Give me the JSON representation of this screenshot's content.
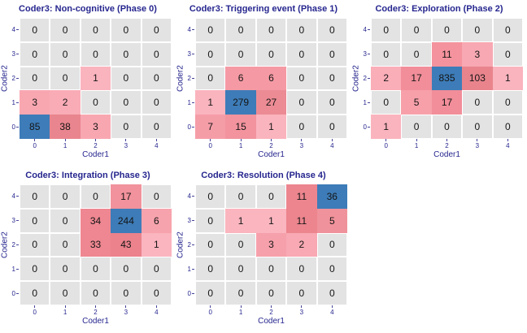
{
  "page": {
    "background": "#ffffff"
  },
  "style": {
    "navy": "#26268f",
    "tick_mark_color": "#44449a",
    "zero_fill": "#e3e3e3",
    "grid_line": "#ffffff",
    "max_blue": "#3d7cb8",
    "cell_text": "#151515"
  },
  "chart_data": [
    {
      "type": "heatmap",
      "title": "Coder3: Non-cognitive (Phase 0)",
      "xlabel": "Coder1",
      "ylabel": "Coder2",
      "x_ticks": [
        "0",
        "1",
        "2",
        "3",
        "4"
      ],
      "y_ticks": [
        "4",
        "3",
        "2",
        "1",
        "0"
      ],
      "rows": [
        [
          0,
          0,
          0,
          0,
          0
        ],
        [
          0,
          0,
          0,
          0,
          0
        ],
        [
          0,
          0,
          1,
          0,
          0
        ],
        [
          3,
          2,
          0,
          0,
          0
        ],
        [
          85,
          38,
          3,
          0,
          0
        ]
      ],
      "cell_colors": [
        [
          null,
          null,
          null,
          null,
          null
        ],
        [
          null,
          null,
          null,
          null,
          null
        ],
        [
          null,
          null,
          "#fab4be",
          null,
          null
        ],
        [
          "#f8a7b1",
          "#f9acb6",
          null,
          null,
          null
        ],
        [
          "#3d7cb8",
          "#e9858e",
          "#f8a7b1",
          null,
          null
        ]
      ]
    },
    {
      "type": "heatmap",
      "title": "Coder3: Triggering event (Phase 1)",
      "xlabel": "Coder1",
      "ylabel": "Coder2",
      "x_ticks": [
        "0",
        "1",
        "2",
        "3",
        "4"
      ],
      "y_ticks": [
        "4",
        "3",
        "2",
        "1",
        "0"
      ],
      "rows": [
        [
          0,
          0,
          0,
          0,
          0
        ],
        [
          0,
          0,
          0,
          0,
          0
        ],
        [
          0,
          6,
          6,
          0,
          0
        ],
        [
          1,
          279,
          27,
          0,
          0
        ],
        [
          7,
          15,
          1,
          0,
          0
        ]
      ],
      "cell_colors": [
        [
          null,
          null,
          null,
          null,
          null
        ],
        [
          null,
          null,
          null,
          null,
          null
        ],
        [
          null,
          "#f59aa4",
          "#f59aa4",
          null,
          null
        ],
        [
          "#fab4be",
          "#3d7cb8",
          "#ec8b94",
          null,
          null
        ],
        [
          "#f59da7",
          "#f2939e",
          "#fab4be",
          null,
          null
        ]
      ]
    },
    {
      "type": "heatmap",
      "title": "Coder3: Exploration (Phase 2)",
      "xlabel": "Coder1",
      "ylabel": "Coder2",
      "x_ticks": [
        "0",
        "1",
        "2",
        "3",
        "4"
      ],
      "y_ticks": [
        "4",
        "3",
        "2",
        "1",
        "0"
      ],
      "rows": [
        [
          0,
          0,
          0,
          0,
          0
        ],
        [
          0,
          0,
          11,
          3,
          0
        ],
        [
          2,
          17,
          835,
          103,
          1
        ],
        [
          0,
          5,
          17,
          0,
          0
        ],
        [
          1,
          0,
          0,
          0,
          0
        ]
      ],
      "cell_colors": [
        [
          null,
          null,
          null,
          null,
          null
        ],
        [
          null,
          null,
          "#f4939d",
          "#f8a8b2",
          null
        ],
        [
          "#faaeb8",
          "#f18e99",
          "#3d7cb8",
          "#e9848d",
          "#fab4be"
        ],
        [
          null,
          "#f7a0aa",
          "#f18e99",
          null,
          null
        ],
        [
          "#fab4be",
          null,
          null,
          null,
          null
        ]
      ]
    },
    {
      "type": "heatmap",
      "title": "Coder3: Integration (Phase 3)",
      "xlabel": "Coder1",
      "ylabel": "Coder2",
      "x_ticks": [
        "0",
        "1",
        "2",
        "3",
        "4"
      ],
      "y_ticks": [
        "4",
        "3",
        "2",
        "1",
        "0"
      ],
      "rows": [
        [
          0,
          0,
          0,
          17,
          0
        ],
        [
          0,
          0,
          34,
          244,
          6
        ],
        [
          0,
          0,
          33,
          43,
          1
        ],
        [
          0,
          0,
          0,
          0,
          0
        ],
        [
          0,
          0,
          0,
          0,
          0
        ]
      ],
      "cell_colors": [
        [
          null,
          null,
          null,
          "#f1929c",
          null
        ],
        [
          null,
          null,
          "#ee8791",
          "#3d7cb8",
          "#f7a3ad"
        ],
        [
          null,
          null,
          "#ee8791",
          "#ec828c",
          "#fab5bf"
        ],
        [
          null,
          null,
          null,
          null,
          null
        ],
        [
          null,
          null,
          null,
          null,
          null
        ]
      ]
    },
    {
      "type": "heatmap",
      "title": "Coder3: Resolution (Phase 4)",
      "xlabel": "Coder1",
      "ylabel": "Coder2",
      "x_ticks": [
        "0",
        "1",
        "2",
        "3",
        "4"
      ],
      "y_ticks": [
        "4",
        "3",
        "2",
        "1",
        "0"
      ],
      "rows": [
        [
          0,
          0,
          0,
          11,
          36
        ],
        [
          0,
          1,
          1,
          11,
          5
        ],
        [
          0,
          0,
          3,
          2,
          0
        ],
        [
          0,
          0,
          0,
          0,
          0
        ],
        [
          0,
          0,
          0,
          0,
          0
        ]
      ],
      "cell_colors": [
        [
          null,
          null,
          null,
          "#ec858e",
          "#3d7cb8"
        ],
        [
          null,
          "#fab5bf",
          "#fab5bf",
          "#ec858e",
          "#f0929b"
        ],
        [
          null,
          null,
          "#f6a0ab",
          "#f8a9b3",
          null
        ],
        [
          null,
          null,
          null,
          null,
          null
        ],
        [
          null,
          null,
          null,
          null,
          null
        ]
      ]
    }
  ]
}
